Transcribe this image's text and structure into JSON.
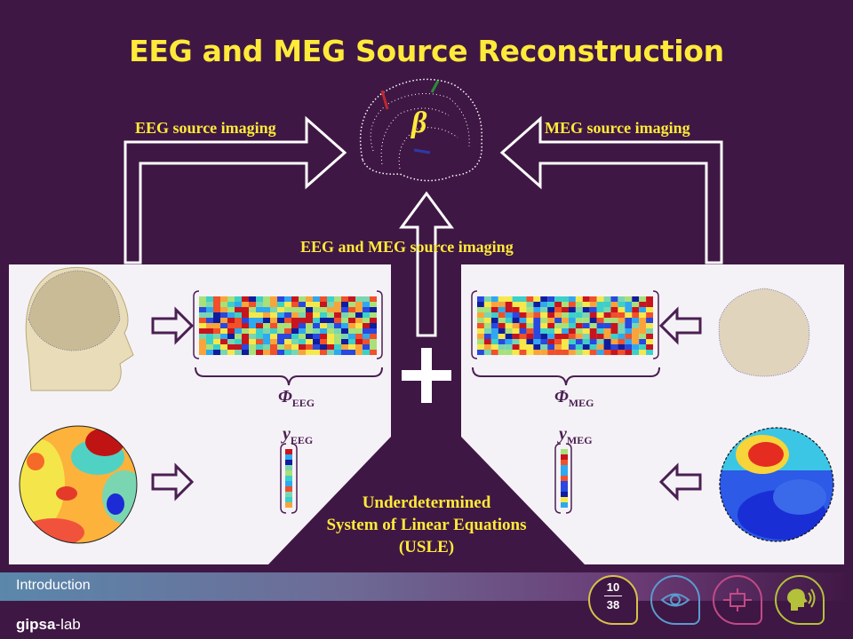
{
  "slide": {
    "title": "EEG and MEG Source Reconstruction",
    "eeg_source_label": "EEG source imaging",
    "meg_source_label": "MEG source imaging",
    "joint_label": "EEG and MEG source imaging",
    "beta_symbol": "β",
    "phi_eeg": {
      "base": "Φ",
      "sub": "EEG"
    },
    "phi_meg": {
      "base": "Φ",
      "sub": "MEG"
    },
    "y_eeg": {
      "base": "y",
      "sub": "EEG"
    },
    "y_meg": {
      "base": "y",
      "sub": "MEG"
    },
    "usle_lines": [
      "Underdetermined",
      "System of Linear Equations",
      "(USLE)"
    ],
    "plus_sign": "+"
  },
  "footer": {
    "section": "Introduction",
    "logo_bold": "gipsa",
    "logo_rest": "-lab",
    "page_current": "10",
    "page_total": "38"
  },
  "colors": {
    "background": "#3f1744",
    "title": "#ffea3a",
    "label": "#ffea3a",
    "panel": "#f5f2f7",
    "symbol": "#4a1f52",
    "badge_page": "#d8c24a",
    "badge_eye": "#5a9ccf",
    "badge_circuit": "#c24a86",
    "badge_speech": "#b3c23a"
  },
  "icons": [
    "head-model-icon",
    "eeg-topomap-icon",
    "meg-head-model-icon",
    "meg-topomap-icon",
    "brain-source-icon",
    "eye-icon",
    "circuit-icon",
    "speech-head-icon"
  ]
}
